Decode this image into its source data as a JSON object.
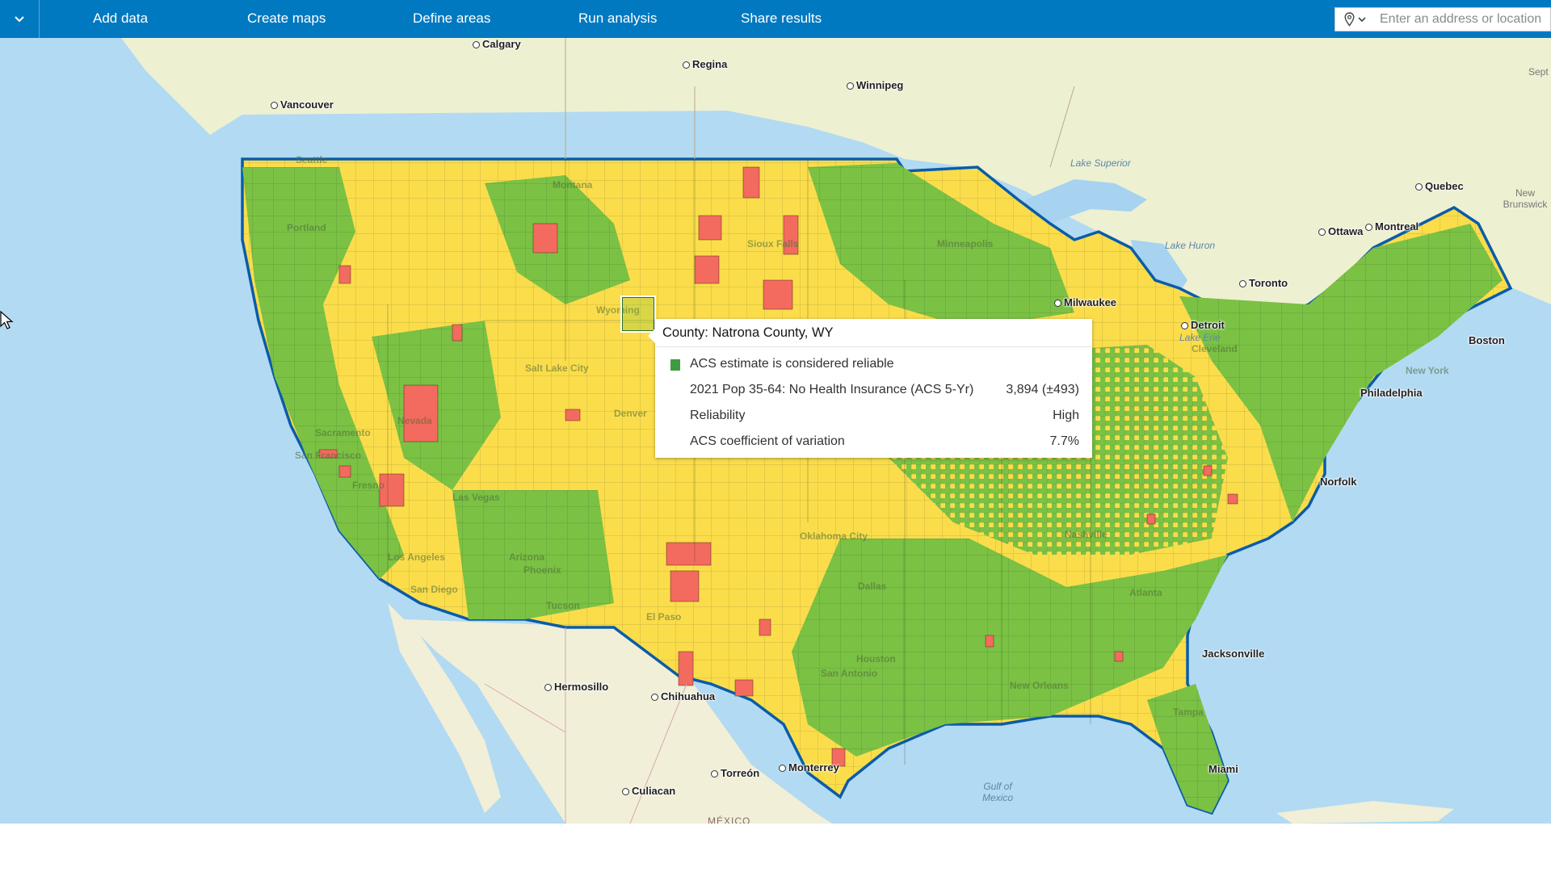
{
  "toolbar": {
    "menu_icon": "chevron-down-icon",
    "nav": [
      "Add data",
      "Create maps",
      "Define areas",
      "Run analysis",
      "Share results"
    ],
    "search_placeholder": "Enter an address or location",
    "search_source_icon": "map-pin-icon",
    "color": "#0079c1"
  },
  "map": {
    "legend_colors": {
      "reliable": "#7bc144",
      "caution": "#fbdd4b",
      "unreliable": "#f26b5e"
    },
    "cities": [
      "Calgary",
      "Regina",
      "Winnipeg",
      "Vancouver",
      "Quebec",
      "Montreal",
      "Ottawa",
      "Toronto",
      "Milwaukee",
      "Detroit",
      "Hermosillo",
      "Chihuahua",
      "Torreón",
      "Monterrey",
      "Culiacan",
      "Jacksonville",
      "Miami",
      "Philadelphia",
      "Norfolk",
      "Boston",
      "Seattle",
      "Portland",
      "Sacramento",
      "San Francisco",
      "Fresno",
      "Los Angeles",
      "San Diego",
      "Las Vegas",
      "Phoenix",
      "Tucson",
      "El Paso",
      "Salt Lake City",
      "Dallas",
      "San Antonio",
      "Minneapolis",
      "New York",
      "Cleveland",
      "Atlanta",
      "Nashville",
      "Tampa",
      "New Orleans",
      "Denver",
      "Oklahoma City",
      "Houston"
    ],
    "water_labels": [
      "Lake Superior",
      "Lake Huron",
      "Lake Erie",
      "Gulf of Mexico"
    ],
    "region_labels": [
      "New Brunswick",
      "Sept",
      "Montana",
      "Wyoming",
      "Nevada",
      "Arizona",
      "Sioux Falls",
      "MÉXICO"
    ]
  },
  "popup": {
    "title": "County: Natrona County, WY",
    "legend_label": "ACS estimate is considered reliable",
    "rows": [
      {
        "label": "2021 Pop 35-64: No Health Insurance (ACS 5-Yr)",
        "value": "3,894 (±493)"
      },
      {
        "label": "Reliability",
        "value": "High"
      },
      {
        "label": "ACS coefficient of variation",
        "value": "7.7%"
      }
    ]
  }
}
